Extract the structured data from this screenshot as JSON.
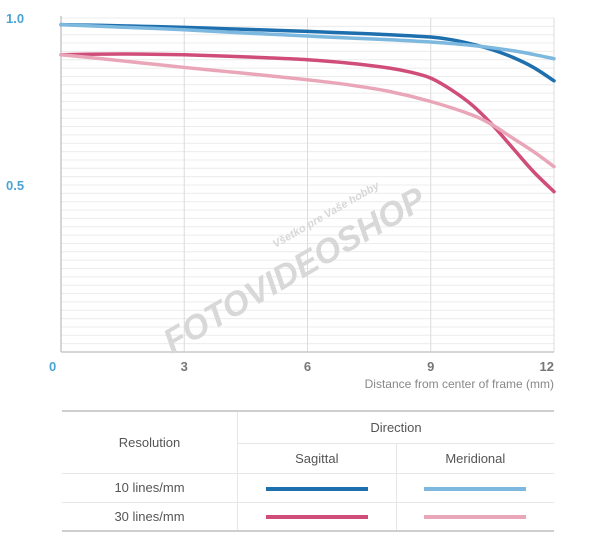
{
  "chart_data": {
    "type": "line",
    "title": "",
    "xlabel": "Distance from center of frame (mm)",
    "ylabel": "",
    "xlim": [
      0,
      12
    ],
    "ylim": [
      0,
      1
    ],
    "x_ticks": [
      "0",
      "3",
      "6",
      "9",
      "12"
    ],
    "y_ticks": [
      "1.0",
      "0.5"
    ],
    "series": [
      {
        "color": "#1d6fae",
        "points": [
          [
            0,
            0.98
          ],
          [
            1,
            0.978
          ],
          [
            2,
            0.975
          ],
          [
            3,
            0.972
          ],
          [
            4,
            0.968
          ],
          [
            5,
            0.964
          ],
          [
            6,
            0.96
          ],
          [
            7,
            0.955
          ],
          [
            8,
            0.95
          ],
          [
            9,
            0.943
          ],
          [
            9.5,
            0.935
          ],
          [
            10,
            0.922
          ],
          [
            10.5,
            0.905
          ],
          [
            11,
            0.882
          ],
          [
            11.5,
            0.852
          ],
          [
            12,
            0.812
          ]
        ]
      },
      {
        "color": "#7db8de",
        "points": [
          [
            0,
            0.98
          ],
          [
            1,
            0.975
          ],
          [
            2,
            0.97
          ],
          [
            3,
            0.965
          ],
          [
            4,
            0.958
          ],
          [
            5,
            0.952
          ],
          [
            6,
            0.946
          ],
          [
            7,
            0.94
          ],
          [
            8,
            0.935
          ],
          [
            9,
            0.928
          ],
          [
            10,
            0.918
          ],
          [
            11,
            0.902
          ],
          [
            11.5,
            0.891
          ],
          [
            12,
            0.878
          ]
        ]
      },
      {
        "color": "#cf4d78",
        "points": [
          [
            0,
            0.89
          ],
          [
            1,
            0.892
          ],
          [
            2,
            0.892
          ],
          [
            3,
            0.89
          ],
          [
            4,
            0.886
          ],
          [
            5,
            0.881
          ],
          [
            6,
            0.875
          ],
          [
            7,
            0.865
          ],
          [
            8,
            0.85
          ],
          [
            8.5,
            0.838
          ],
          [
            9,
            0.82
          ],
          [
            9.5,
            0.785
          ],
          [
            10,
            0.74
          ],
          [
            10.5,
            0.68
          ],
          [
            11,
            0.61
          ],
          [
            11.5,
            0.54
          ],
          [
            12,
            0.48
          ]
        ]
      },
      {
        "color": "#eaa6b9",
        "points": [
          [
            0,
            0.89
          ],
          [
            1,
            0.878
          ],
          [
            2,
            0.865
          ],
          [
            3,
            0.852
          ],
          [
            4,
            0.84
          ],
          [
            5,
            0.828
          ],
          [
            6,
            0.815
          ],
          [
            7,
            0.8
          ],
          [
            8,
            0.78
          ],
          [
            9,
            0.75
          ],
          [
            10,
            0.71
          ],
          [
            10.5,
            0.68
          ],
          [
            11,
            0.64
          ],
          [
            11.5,
            0.6
          ],
          [
            12,
            0.555
          ]
        ]
      }
    ]
  },
  "watermark": {
    "brand": "FOTOVIDEOSHOP",
    "tagline": "Všetko pre Vaše hobby"
  },
  "legend": {
    "direction": "Direction",
    "resolution": "Resolution",
    "sagittal": "Sagittal",
    "meridional": "Meridional",
    "rows": [
      {
        "label": "10 lines/mm",
        "sagittal_color": "#1d6fae",
        "meridional_color": "#7db8de"
      },
      {
        "label": "30 lines/mm",
        "sagittal_color": "#cf4d78",
        "meridional_color": "#eaa6b9"
      }
    ]
  }
}
